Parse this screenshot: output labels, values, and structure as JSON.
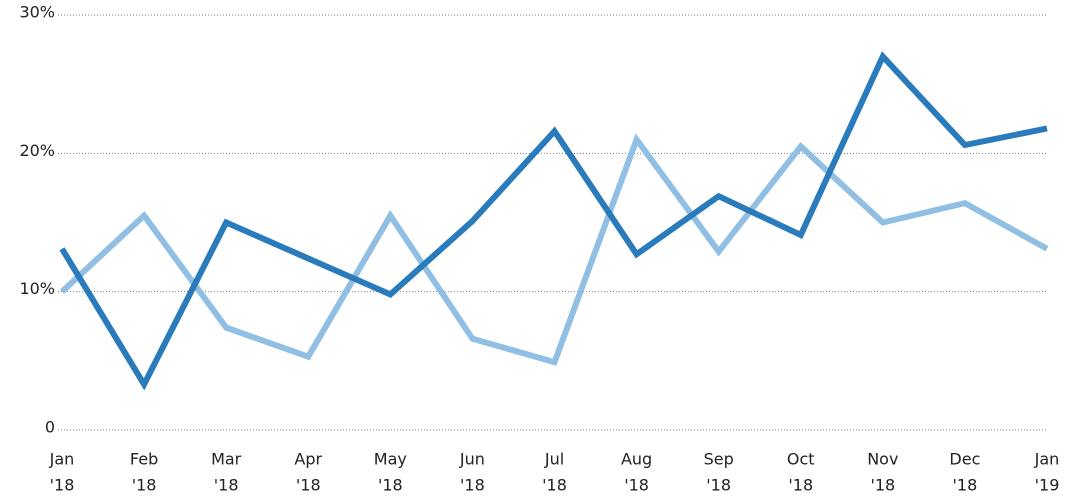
{
  "chart_data": {
    "type": "line",
    "categories": [
      [
        "Jan",
        "'18"
      ],
      [
        "Feb",
        "'18"
      ],
      [
        "Mar",
        "'18"
      ],
      [
        "Apr",
        "'18"
      ],
      [
        "May",
        "'18"
      ],
      [
        "Jun",
        "'18"
      ],
      [
        "Jul",
        "'18"
      ],
      [
        "Aug",
        "'18"
      ],
      [
        "Sep",
        "'18"
      ],
      [
        "Oct",
        "'18"
      ],
      [
        "Nov",
        "'18"
      ],
      [
        "Dec",
        "'18"
      ],
      [
        "Jan",
        "'19"
      ]
    ],
    "series": [
      {
        "color": "#2a7bbb",
        "values": [
          13.1,
          3.3,
          15.0,
          12.4,
          9.8,
          15.1,
          21.6,
          12.7,
          16.9,
          14.1,
          27.0,
          20.6,
          21.8
        ]
      },
      {
        "color": "#90bfe3",
        "values": [
          10.0,
          15.5,
          7.4,
          5.3,
          15.5,
          6.6,
          4.9,
          21.0,
          12.9,
          20.5,
          15.0,
          16.4,
          13.1
        ]
      }
    ],
    "ylim": [
      0,
      30
    ],
    "yticks": [
      0,
      {
        "value": 10,
        "label": "10%"
      },
      {
        "value": 20,
        "label": "20%"
      },
      {
        "value": 30,
        "label": "30%"
      }
    ],
    "grid": true
  }
}
